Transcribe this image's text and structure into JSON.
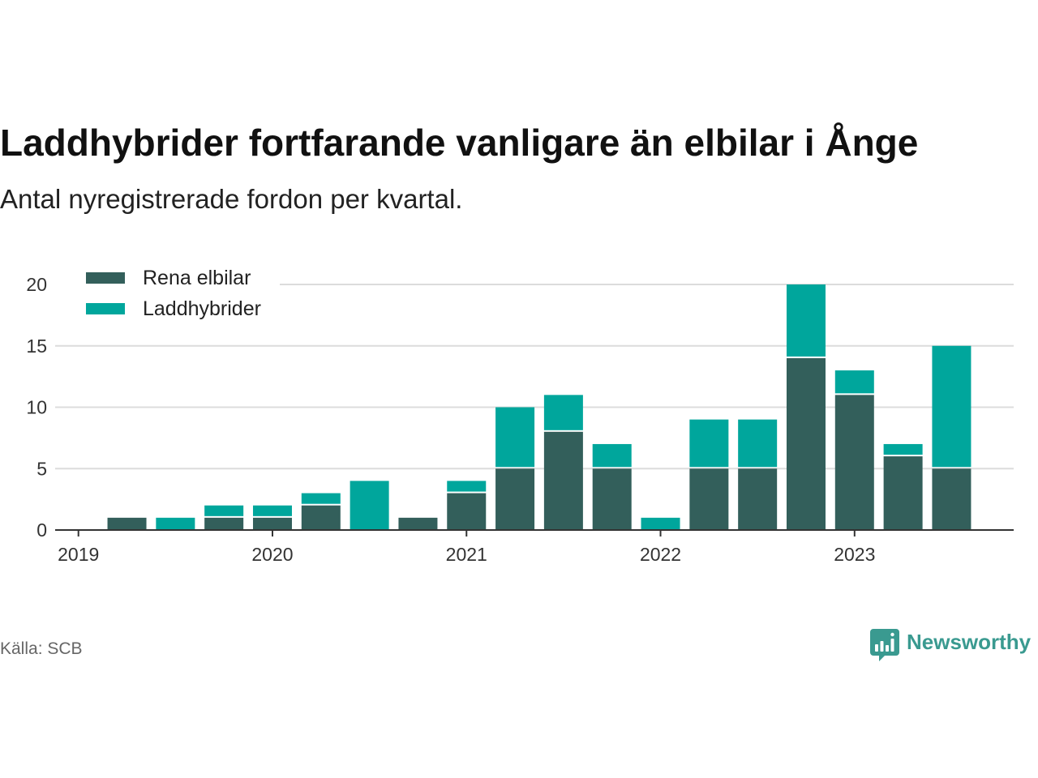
{
  "chart_data": {
    "type": "bar",
    "stacked": true,
    "title": "Laddhybrider fortfarande vanligare än elbilar i Ånge",
    "subtitle": "Antal nyregistrerade fordon per kvartal.",
    "xlabel": "",
    "ylabel": "",
    "x": [
      2019.25,
      2019.5,
      2019.75,
      2020.0,
      2020.25,
      2020.5,
      2020.75,
      2021.0,
      2021.25,
      2021.5,
      2021.75,
      2022.0,
      2022.25,
      2022.5,
      2022.75,
      2023.0,
      2023.25,
      2023.5
    ],
    "series": [
      {
        "name": "Rena elbilar",
        "color": "#335f5b",
        "values": [
          1,
          0,
          1,
          1,
          2,
          0,
          1,
          3,
          5,
          8,
          5,
          0,
          5,
          5,
          14,
          11,
          6,
          5
        ]
      },
      {
        "name": "Laddhybrider",
        "color": "#00a69c",
        "values": [
          0,
          1,
          1,
          1,
          1,
          4,
          0,
          1,
          5,
          3,
          2,
          1,
          4,
          4,
          6,
          2,
          1,
          10
        ]
      }
    ],
    "xticks": [
      2019,
      2020,
      2021,
      2022,
      2023
    ],
    "yticks": [
      0,
      5,
      10,
      15,
      20
    ],
    "xlim": [
      2018.88,
      2023.82
    ],
    "ylim": [
      0,
      20
    ],
    "grid": true,
    "legend": "top-left",
    "grid_color": "#dcdcdc",
    "axis_color": "#333333",
    "source": "Källa: SCB"
  },
  "branding": {
    "logo_text": "Newsworthy",
    "color": "#3a9a90"
  }
}
